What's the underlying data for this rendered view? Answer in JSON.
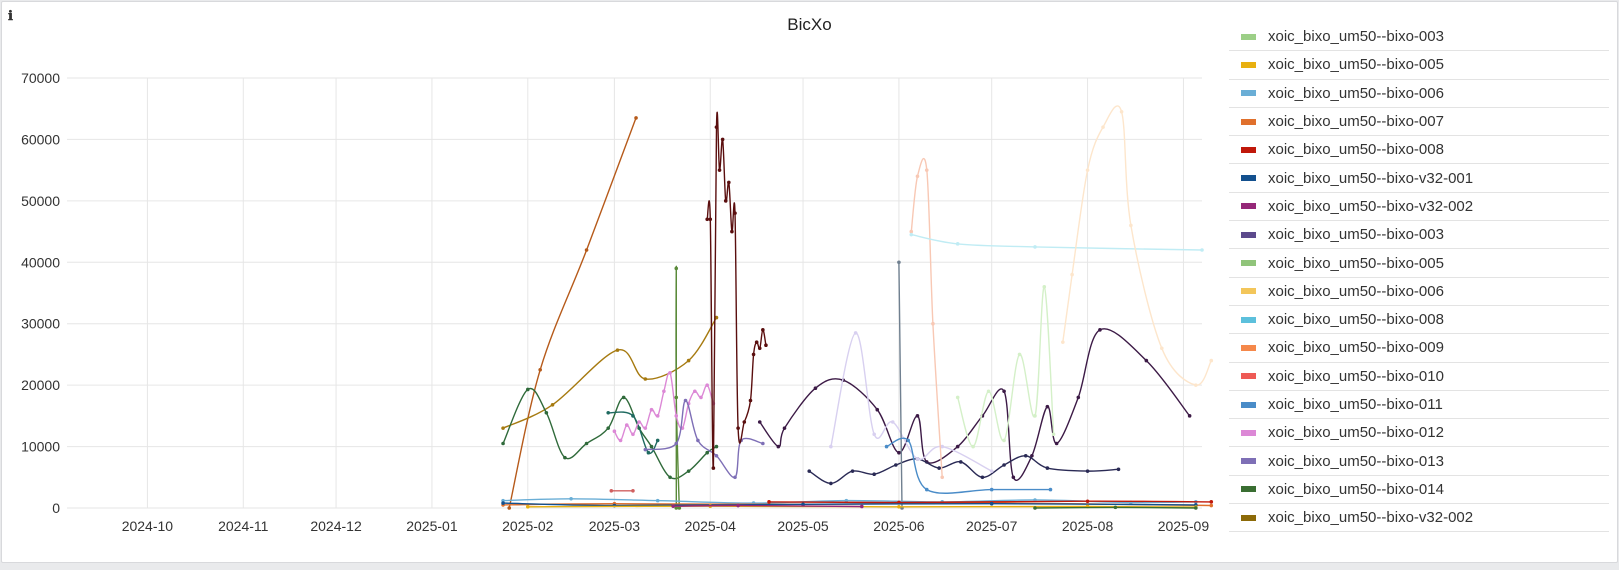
{
  "panel": {
    "title": "BicXo",
    "info_icon": "ℹ"
  },
  "legend": {
    "items": [
      {
        "label": "xoic_bixo_um50--bixo-003",
        "color": "#9ccf87"
      },
      {
        "label": "xoic_bixo_um50--bixo-005",
        "color": "#e8b010"
      },
      {
        "label": "xoic_bixo_um50--bixo-006",
        "color": "#6aaed6"
      },
      {
        "label": "xoic_bixo_um50--bixo-007",
        "color": "#e0702c"
      },
      {
        "label": "xoic_bixo_um50--bixo-008",
        "color": "#c0180a"
      },
      {
        "label": "xoic_bixo_um50--bixo-v32-001",
        "color": "#13508e"
      },
      {
        "label": "xoic_bixo_um50--bixo-v32-002",
        "color": "#952878"
      },
      {
        "label": "xoic_bixo_um50--bixo-003",
        "color": "#5c4a8c"
      },
      {
        "label": "xoic_bixo_um50--bixo-005",
        "color": "#90c47a"
      },
      {
        "label": "xoic_bixo_um50--bixo-006",
        "color": "#f3c65a"
      },
      {
        "label": "xoic_bixo_um50--bixo-008",
        "color": "#5cc0dc"
      },
      {
        "label": "xoic_bixo_um50--bixo-009",
        "color": "#f5884a"
      },
      {
        "label": "xoic_bixo_um50--bixo-010",
        "color": "#ee5a55"
      },
      {
        "label": "xoic_bixo_um50--bixo-011",
        "color": "#4a8cc8"
      },
      {
        "label": "xoic_bixo_um50--bixo-012",
        "color": "#dc88d6"
      },
      {
        "label": "xoic_bixo_um50--bixo-013",
        "color": "#7e6fb6"
      },
      {
        "label": "xoic_bixo_um50--bixo-014",
        "color": "#3a6e32"
      },
      {
        "label": "xoic_bixo_um50--bixo-v32-002",
        "color": "#8c6a08"
      }
    ]
  },
  "chart_data": {
    "type": "line",
    "title": "BicXo",
    "xlabel": "",
    "ylabel": "",
    "ylim": [
      0,
      70000
    ],
    "xlim": [
      "2024-09-05",
      "2025-09-07"
    ],
    "y_ticks": [
      0,
      10000,
      20000,
      30000,
      40000,
      50000,
      60000,
      70000
    ],
    "x_ticks": [
      "2024-10",
      "2024-11",
      "2024-12",
      "2025-01",
      "2025-02",
      "2025-03",
      "2025-04",
      "2025-05",
      "2025-06",
      "2025-07",
      "2025-08",
      "2025-09"
    ],
    "grid": true,
    "legend_position": "right",
    "series": [
      {
        "color": "#b65a1a",
        "points": [
          [
            "2025-01-26",
            0
          ],
          [
            "2025-02-05",
            22500
          ],
          [
            "2025-02-20",
            42000
          ],
          [
            "2025-03-08",
            63500
          ]
        ]
      },
      {
        "color": "#a67a10",
        "points": [
          [
            "2025-01-24",
            13000
          ],
          [
            "2025-02-09",
            16800
          ],
          [
            "2025-03-02",
            25700
          ],
          [
            "2025-03-11",
            21000
          ],
          [
            "2025-03-25",
            24000
          ],
          [
            "2025-04-03",
            31000
          ]
        ]
      },
      {
        "color": "#2f6a3a",
        "points": [
          [
            "2025-01-24",
            10500
          ],
          [
            "2025-02-01",
            19300
          ],
          [
            "2025-02-07",
            15500
          ],
          [
            "2025-02-13",
            8200
          ],
          [
            "2025-02-20",
            10500
          ],
          [
            "2025-02-27",
            13000
          ],
          [
            "2025-03-04",
            18000
          ],
          [
            "2025-03-09",
            13000
          ],
          [
            "2025-03-13",
            10000
          ],
          [
            "2025-03-19",
            5000
          ],
          [
            "2025-03-25",
            6000
          ],
          [
            "2025-03-31",
            9000
          ],
          [
            "2025-04-03",
            10000
          ]
        ]
      },
      {
        "color": "#5a8a3a",
        "points": [
          [
            "2025-03-21",
            0
          ],
          [
            "2025-03-21",
            39000
          ],
          [
            "2025-03-21",
            18000
          ],
          [
            "2025-03-22",
            0
          ]
        ]
      },
      {
        "color": "#1f6a60",
        "points": [
          [
            "2025-02-27",
            15500
          ],
          [
            "2025-03-07",
            15000
          ],
          [
            "2025-03-12",
            9000
          ],
          [
            "2025-03-15",
            11000
          ]
        ]
      },
      {
        "color": "#d06060",
        "points": [
          [
            "2025-02-28",
            2800
          ],
          [
            "2025-03-07",
            2800
          ]
        ]
      },
      {
        "color": "#dc88d6",
        "points": [
          [
            "2025-03-01",
            12500
          ],
          [
            "2025-03-03",
            11000
          ],
          [
            "2025-03-05",
            13500
          ],
          [
            "2025-03-07",
            12000
          ],
          [
            "2025-03-09",
            14000
          ],
          [
            "2025-03-11",
            13000
          ],
          [
            "2025-03-13",
            16000
          ],
          [
            "2025-03-15",
            15000
          ],
          [
            "2025-03-17",
            19000
          ],
          [
            "2025-03-19",
            22000
          ],
          [
            "2025-03-21",
            15000
          ],
          [
            "2025-03-23",
            13000
          ],
          [
            "2025-03-25",
            17000
          ],
          [
            "2025-03-27",
            19000
          ],
          [
            "2025-03-29",
            18000
          ],
          [
            "2025-03-31",
            20000
          ],
          [
            "2025-04-02",
            17000
          ]
        ]
      },
      {
        "color": "#7e6fb6",
        "points": [
          [
            "2025-03-11",
            9500
          ],
          [
            "2025-03-21",
            10500
          ],
          [
            "2025-03-24",
            17500
          ],
          [
            "2025-03-28",
            11000
          ],
          [
            "2025-04-03",
            8500
          ],
          [
            "2025-04-09",
            5000
          ],
          [
            "2025-04-11",
            11000
          ],
          [
            "2025-04-18",
            10500
          ]
        ]
      },
      {
        "color": "#5a0e0e",
        "points": [
          [
            "2025-03-31",
            47000
          ],
          [
            "2025-04-01",
            47000
          ],
          [
            "2025-04-02",
            6500
          ],
          [
            "2025-04-03",
            62000
          ],
          [
            "2025-04-04",
            55000
          ],
          [
            "2025-04-05",
            60000
          ],
          [
            "2025-04-06",
            50000
          ],
          [
            "2025-04-07",
            53000
          ],
          [
            "2025-04-08",
            45000
          ],
          [
            "2025-04-09",
            48000
          ],
          [
            "2025-04-10",
            13000
          ],
          [
            "2025-04-12",
            14000
          ],
          [
            "2025-04-14",
            17500
          ],
          [
            "2025-04-15",
            25000
          ],
          [
            "2025-04-16",
            27000
          ],
          [
            "2025-04-17",
            26000
          ],
          [
            "2025-04-18",
            29000
          ],
          [
            "2025-04-19",
            26500
          ]
        ]
      },
      {
        "color": "#3c1a46",
        "points": [
          [
            "2025-04-17",
            14000
          ],
          [
            "2025-04-23",
            10000
          ],
          [
            "2025-04-25",
            13000
          ],
          [
            "2025-05-05",
            19500
          ],
          [
            "2025-05-14",
            20800
          ],
          [
            "2025-05-25",
            16000
          ],
          [
            "2025-06-01",
            9000
          ],
          [
            "2025-06-07",
            15000
          ],
          [
            "2025-06-10",
            7500
          ],
          [
            "2025-06-20",
            10000
          ],
          [
            "2025-06-28",
            15000
          ],
          [
            "2025-07-05",
            19000
          ],
          [
            "2025-07-08",
            5000
          ],
          [
            "2025-07-14",
            8500
          ],
          [
            "2025-07-19",
            16500
          ],
          [
            "2025-07-22",
            10500
          ],
          [
            "2025-07-29",
            18000
          ],
          [
            "2025-08-05",
            29000
          ],
          [
            "2025-08-20",
            24000
          ],
          [
            "2025-09-03",
            15000
          ]
        ]
      },
      {
        "color": "#2a2a55",
        "points": [
          [
            "2025-05-03",
            6000
          ],
          [
            "2025-05-10",
            4000
          ],
          [
            "2025-05-17",
            6000
          ],
          [
            "2025-05-24",
            5500
          ],
          [
            "2025-05-31",
            7000
          ],
          [
            "2025-06-07",
            8000
          ],
          [
            "2025-06-14",
            6500
          ],
          [
            "2025-06-21",
            7500
          ],
          [
            "2025-06-28",
            5000
          ],
          [
            "2025-07-05",
            7000
          ],
          [
            "2025-07-12",
            8500
          ],
          [
            "2025-07-19",
            6500
          ],
          [
            "2025-08-01",
            6000
          ],
          [
            "2025-08-11",
            6300
          ]
        ]
      },
      {
        "color": "#d8d0f0",
        "points": [
          [
            "2025-05-10",
            10000
          ],
          [
            "2025-05-18",
            28500
          ],
          [
            "2025-05-24",
            12000
          ],
          [
            "2025-05-30",
            14000
          ],
          [
            "2025-06-07",
            8000
          ],
          [
            "2025-06-15",
            10000
          ],
          [
            "2025-07-01",
            6000
          ]
        ]
      },
      {
        "color": "#f8c8b4",
        "points": [
          [
            "2025-06-05",
            45000
          ],
          [
            "2025-06-07",
            54000
          ],
          [
            "2025-06-10",
            55000
          ],
          [
            "2025-06-12",
            30000
          ],
          [
            "2025-06-15",
            5000
          ]
        ]
      },
      {
        "color": "#c0ecf4",
        "points": [
          [
            "2025-06-05",
            44500
          ],
          [
            "2025-06-20",
            43000
          ],
          [
            "2025-07-15",
            42500
          ],
          [
            "2025-09-07",
            42000
          ]
        ]
      },
      {
        "color": "#d4f0c8",
        "points": [
          [
            "2025-06-20",
            18000
          ],
          [
            "2025-06-25",
            10000
          ],
          [
            "2025-06-30",
            19000
          ],
          [
            "2025-07-05",
            11000
          ],
          [
            "2025-07-10",
            25000
          ],
          [
            "2025-07-15",
            15000
          ],
          [
            "2025-07-18",
            36000
          ],
          [
            "2025-07-21",
            12000
          ]
        ]
      },
      {
        "color": "#fde6cc",
        "points": [
          [
            "2025-07-24",
            27000
          ],
          [
            "2025-07-27",
            38000
          ],
          [
            "2025-08-01",
            55000
          ],
          [
            "2025-08-06",
            62000
          ],
          [
            "2025-08-12",
            64500
          ],
          [
            "2025-08-15",
            46000
          ],
          [
            "2025-08-25",
            26000
          ],
          [
            "2025-09-05",
            20000
          ],
          [
            "2025-09-10",
            24000
          ]
        ]
      },
      {
        "color": "#708090",
        "points": [
          [
            "2025-06-01",
            40000
          ],
          [
            "2025-06-02",
            0
          ]
        ]
      },
      {
        "color": "#4a8cc8",
        "points": [
          [
            "2025-05-28",
            10000
          ],
          [
            "2025-06-04",
            11000
          ],
          [
            "2025-06-10",
            3000
          ],
          [
            "2025-07-01",
            3000
          ],
          [
            "2025-07-20",
            3000
          ]
        ]
      },
      {
        "color": "#6aaed6",
        "points": [
          [
            "2025-01-24",
            1200
          ],
          [
            "2025-02-15",
            1500
          ],
          [
            "2025-03-15",
            1200
          ],
          [
            "2025-04-15",
            800
          ],
          [
            "2025-05-15",
            1200
          ],
          [
            "2025-06-15",
            1000
          ],
          [
            "2025-07-15",
            1300
          ],
          [
            "2025-08-15",
            900
          ],
          [
            "2025-09-05",
            1000
          ]
        ]
      },
      {
        "color": "#e0702c",
        "points": [
          [
            "2025-01-24",
            500
          ],
          [
            "2025-03-01",
            700
          ],
          [
            "2025-05-01",
            600
          ],
          [
            "2025-07-01",
            800
          ],
          [
            "2025-09-10",
            400
          ]
        ]
      },
      {
        "color": "#c0180a",
        "points": [
          [
            "2025-04-20",
            1000
          ],
          [
            "2025-06-01",
            900
          ],
          [
            "2025-08-01",
            1100
          ],
          [
            "2025-09-10",
            1000
          ]
        ]
      },
      {
        "color": "#13508e",
        "points": [
          [
            "2025-01-24",
            800
          ],
          [
            "2025-03-01",
            400
          ],
          [
            "2025-05-01",
            600
          ],
          [
            "2025-07-01",
            700
          ],
          [
            "2025-09-05",
            500
          ]
        ]
      },
      {
        "color": "#e8b010",
        "points": [
          [
            "2025-02-01",
            200
          ],
          [
            "2025-04-01",
            300
          ],
          [
            "2025-06-01",
            200
          ],
          [
            "2025-08-01",
            250
          ],
          [
            "2025-09-05",
            150
          ]
        ]
      },
      {
        "color": "#952878",
        "points": [
          [
            "2025-03-20",
            300
          ],
          [
            "2025-04-10",
            400
          ],
          [
            "2025-05-20",
            250
          ]
        ]
      },
      {
        "color": "#3a6e32",
        "points": [
          [
            "2025-07-15",
            0
          ],
          [
            "2025-08-10",
            100
          ],
          [
            "2025-09-05",
            0
          ]
        ]
      }
    ]
  }
}
